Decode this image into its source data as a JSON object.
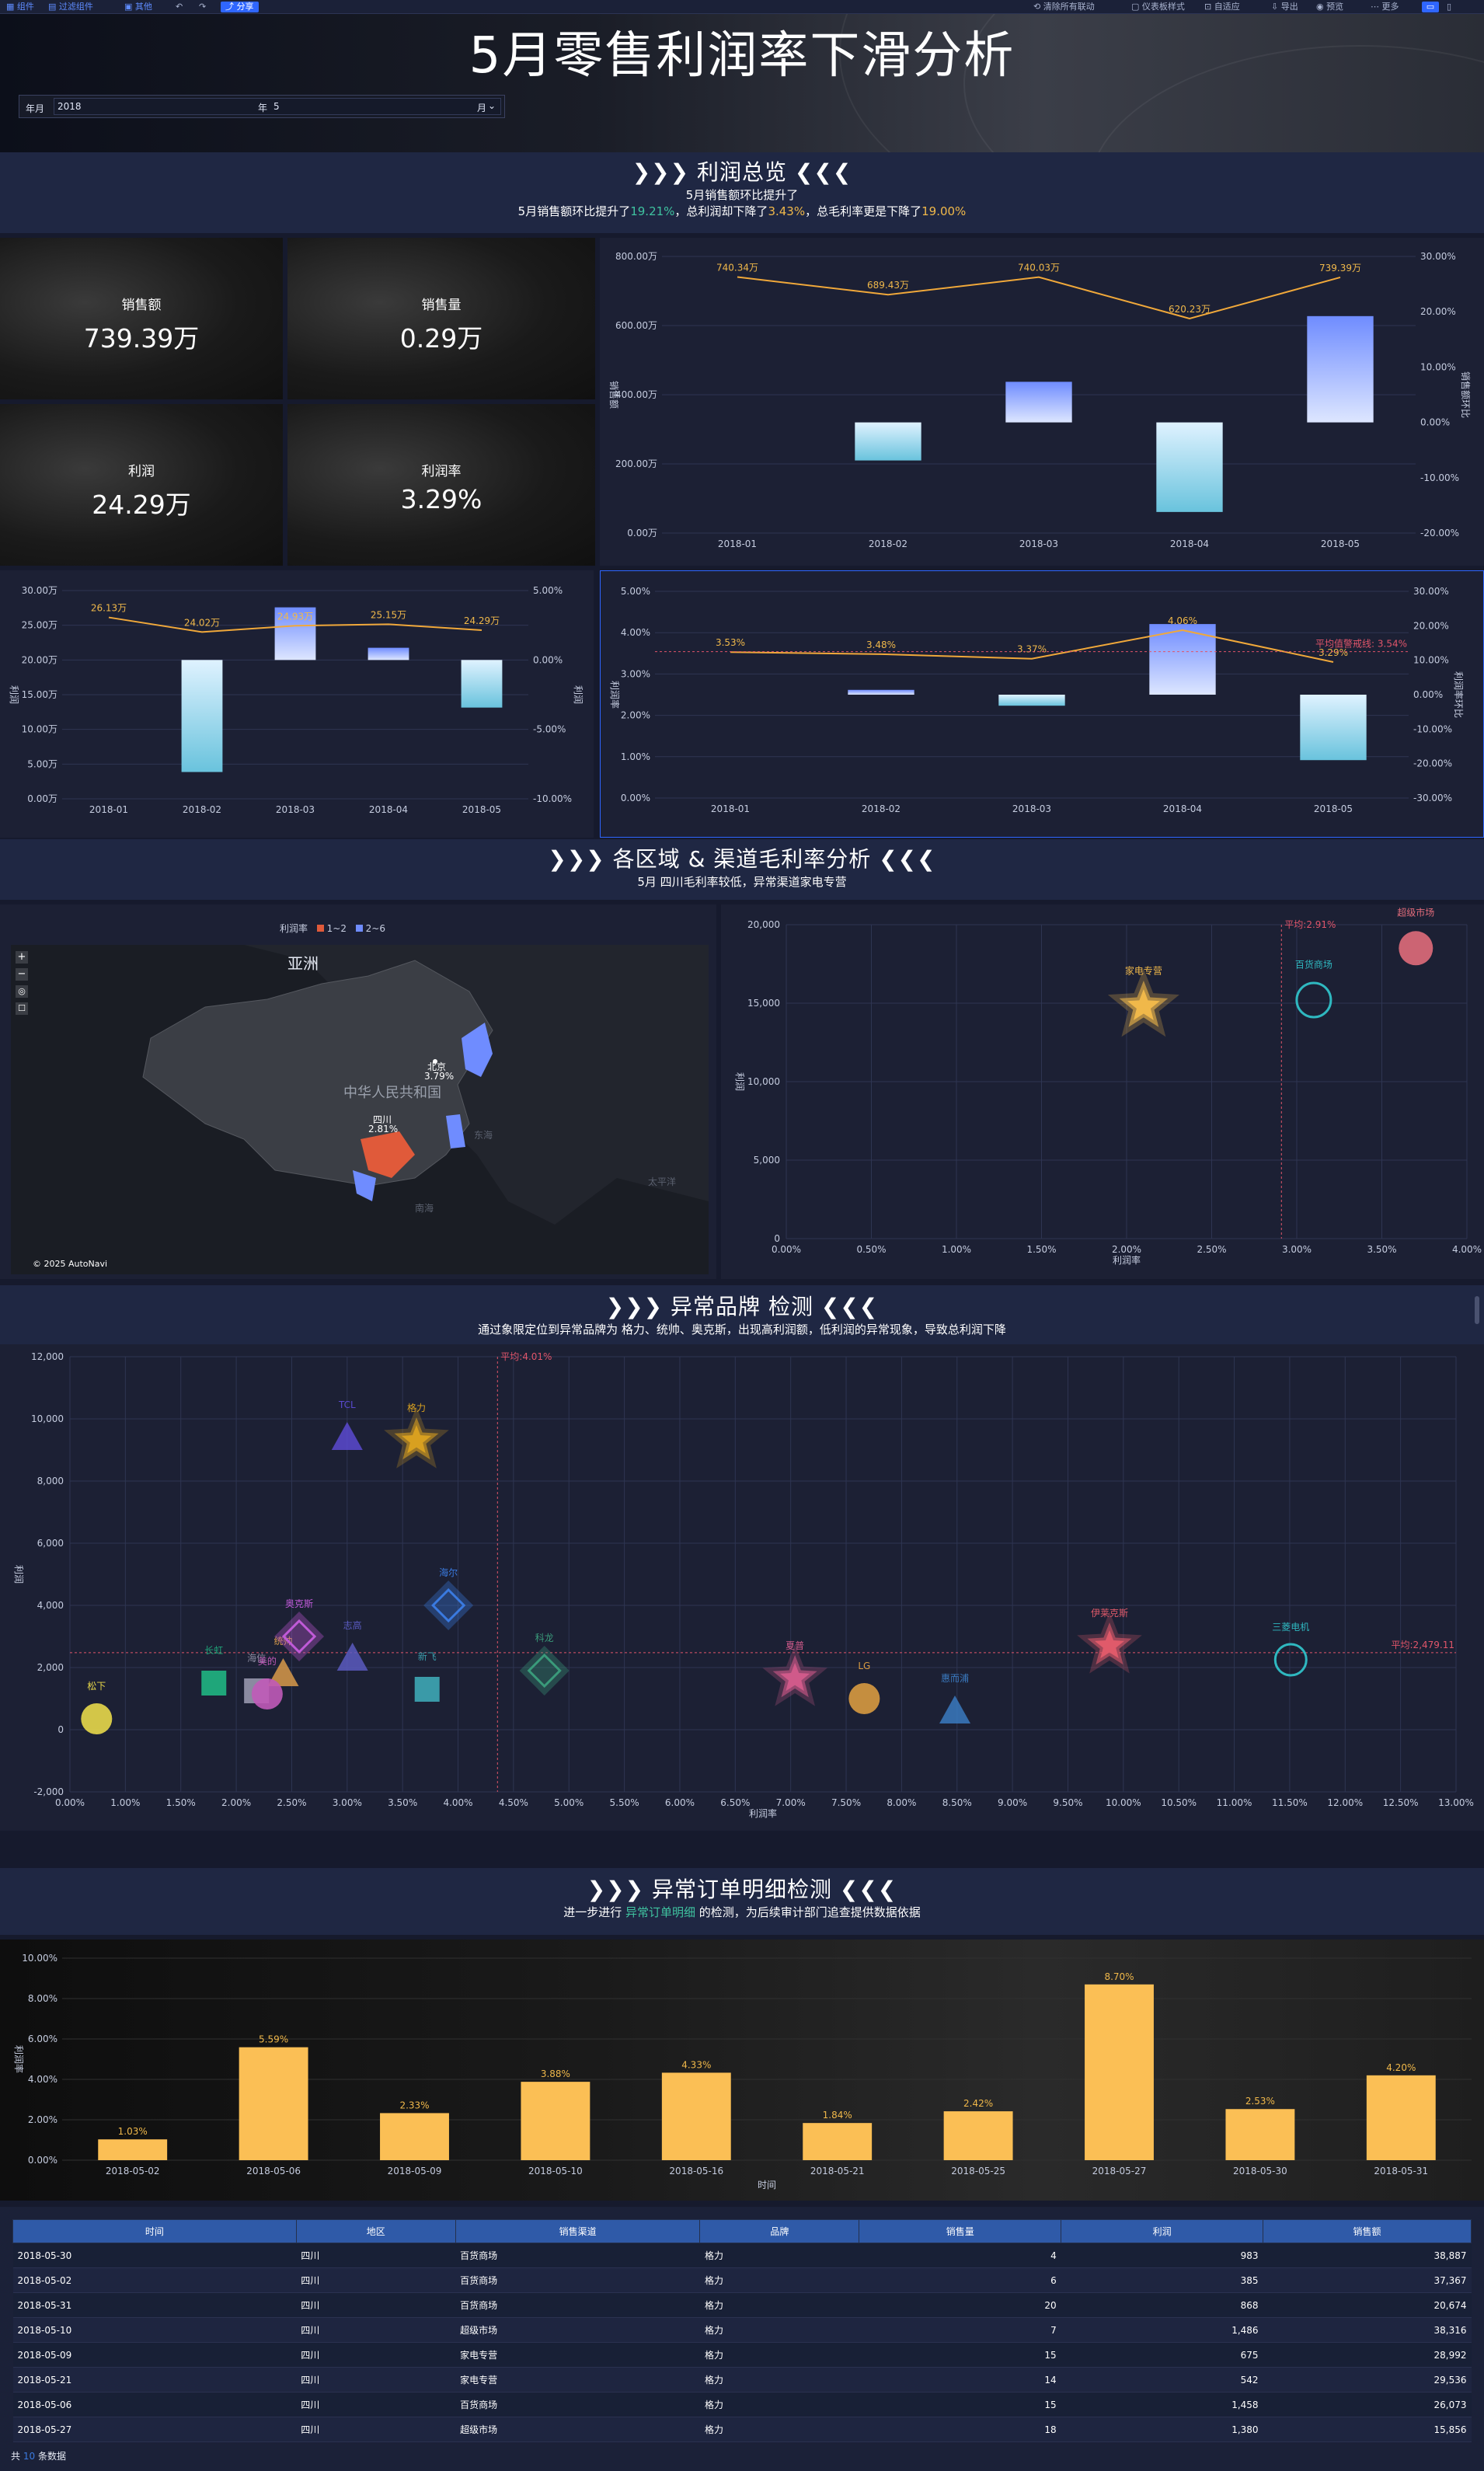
{
  "toolbar": {
    "left": [
      "组件",
      "过滤组件",
      "其他"
    ],
    "share": "分享",
    "right": [
      "清除所有联动",
      "仪表板样式",
      "自适应",
      "导出",
      "预览",
      "更多"
    ]
  },
  "header": {
    "title": "5月零售利润率下滑分析",
    "filter_label": "年月",
    "year_value": "2018",
    "year_unit": "年",
    "month_value": "5",
    "month_unit": "月"
  },
  "section1": {
    "title": "利润总览",
    "line1": "5月销售额环比提升了",
    "line2_a": "5月销售额环比提升了",
    "line2_b": "19.21%",
    "line2_c": "，总利润却下降了",
    "line2_d": "3.43%",
    "line2_e": "，总毛利率更是下降了",
    "line2_f": "19.00%"
  },
  "kpis": [
    {
      "label": "销售额",
      "value": "739.39万"
    },
    {
      "label": "销售量",
      "value": "0.29万"
    },
    {
      "label": "利润",
      "value": "24.29万"
    },
    {
      "label": "利润率",
      "value": "3.29%"
    }
  ],
  "section2": {
    "title": "各区域 & 渠道毛利率分析",
    "subtitle": "5月 四川毛利率较低，异常渠道家电专营"
  },
  "map": {
    "legend_title": "利润率",
    "legend_items": [
      {
        "label": "1~2",
        "color": "#e05a3a"
      },
      {
        "label": "2~6",
        "color": "#6f8cff"
      }
    ],
    "labels": {
      "asia": "亚洲",
      "china": "中华人民共和国",
      "beijing": "北京",
      "beijing_val": "3.79%",
      "sichuan": "四川",
      "sichuan_val": "2.81%",
      "pacific": "太平洋",
      "east_sea": "东海",
      "south_sea": "南海",
      "copyright": "© 2025 AutoNavi"
    },
    "controls": [
      "+",
      "−",
      "◎",
      "☐"
    ]
  },
  "section3": {
    "title": "异常品牌 检测",
    "subtitle": "通过象限定位到异常品牌为 格力、统帅、奥克斯，出现高利润额，低利润的异常现象，导致总利润下降"
  },
  "section4": {
    "title": "异常订单明细检测",
    "sub_a": "进一步进行",
    "sub_b": "异常订单明细",
    "sub_c": "的检测，为后续审计部门追查提供数据依据"
  },
  "table": {
    "columns": [
      "时间",
      "地区",
      "销售渠道",
      "品牌",
      "销售量",
      "利润",
      "销售额"
    ],
    "rows": [
      [
        "2018-05-30",
        "四川",
        "百货商场",
        "格力",
        "4",
        "983",
        "38,887"
      ],
      [
        "2018-05-02",
        "四川",
        "百货商场",
        "格力",
        "6",
        "385",
        "37,367"
      ],
      [
        "2018-05-31",
        "四川",
        "百货商场",
        "格力",
        "20",
        "868",
        "20,674"
      ],
      [
        "2018-05-10",
        "四川",
        "超级市场",
        "格力",
        "7",
        "1,486",
        "38,316"
      ],
      [
        "2018-05-09",
        "四川",
        "家电专营",
        "格力",
        "15",
        "675",
        "28,992"
      ],
      [
        "2018-05-21",
        "四川",
        "家电专营",
        "格力",
        "14",
        "542",
        "29,536"
      ],
      [
        "2018-05-06",
        "四川",
        "百货商场",
        "格力",
        "15",
        "1,458",
        "26,073"
      ],
      [
        "2018-05-27",
        "四川",
        "超级市场",
        "格力",
        "18",
        "1,380",
        "15,856"
      ]
    ],
    "footer_a": "共",
    "footer_b": "10",
    "footer_c": "条数据"
  },
  "chart_data": [
    {
      "type": "bar",
      "subtype": "bar+line",
      "categories": [
        "2018-01",
        "2018-02",
        "2018-03",
        "2018-04",
        "2018-05"
      ],
      "line": {
        "name": "销售额",
        "values": [
          740.34,
          689.43,
          740.03,
          620.23,
          739.39
        ],
        "labels": [
          "740.34万",
          "689.43万",
          "740.03万",
          "620.23万",
          "739.39万"
        ]
      },
      "bars": {
        "name": "销售额环比",
        "values": [
          0,
          -6.88,
          7.34,
          -16.19,
          19.21
        ]
      },
      "ylabel": "销售额",
      "y2label": "销售额环比",
      "yticks": [
        "0.00万",
        "200.00万",
        "400.00万",
        "600.00万",
        "800.00万"
      ],
      "y2ticks": [
        "-20.00%",
        "-10.00%",
        "0.00%",
        "10.00%",
        "20.00%",
        "30.00%"
      ],
      "ylim": [
        0,
        800
      ],
      "y2lim": [
        -20,
        30
      ]
    },
    {
      "type": "bar",
      "subtype": "bar+line",
      "categories": [
        "2018-01",
        "2018-02",
        "2018-03",
        "2018-04",
        "2018-05"
      ],
      "line": {
        "name": "利润",
        "values": [
          26.13,
          24.02,
          24.93,
          25.15,
          24.29
        ],
        "labels": [
          "26.13万",
          "24.02万",
          "24.93万",
          "25.15万",
          "24.29万"
        ]
      },
      "bars": {
        "values": [
          0,
          -8.07,
          3.79,
          0.88,
          -3.43
        ]
      },
      "ylabel": "利润",
      "y2label": "利润",
      "yticks": [
        "0.00万",
        "5.00万",
        "10.00万",
        "15.00万",
        "20.00万",
        "25.00万",
        "30.00万"
      ],
      "y2ticks": [
        "-10.00%",
        "-5.00%",
        "0.00%",
        "5.00%"
      ],
      "ylim": [
        0,
        30
      ],
      "y2lim": [
        -10,
        5
      ]
    },
    {
      "type": "bar",
      "subtype": "bar+line",
      "categories": [
        "2018-01",
        "2018-02",
        "2018-03",
        "2018-04",
        "2018-05"
      ],
      "line": {
        "name": "利润率",
        "values": [
          3.53,
          3.48,
          3.37,
          4.06,
          3.29
        ],
        "labels": [
          "3.53%",
          "3.48%",
          "3.37%",
          "4.06%",
          "3.29%"
        ]
      },
      "bars": {
        "values": [
          0,
          1.4,
          -3.2,
          20.5,
          -19.0
        ]
      },
      "reference": {
        "label": "平均值警戒线: 3.54%",
        "value": 3.54
      },
      "ylabel": "利润率",
      "y2label": "利润率环比",
      "yticks": [
        "0.00%",
        "1.00%",
        "2.00%",
        "3.00%",
        "4.00%",
        "5.00%"
      ],
      "y2ticks": [
        "-30.00%",
        "-20.00%",
        "-10.00%",
        "0.00%",
        "10.00%",
        "20.00%",
        "30.00%"
      ],
      "ylim": [
        0,
        5
      ],
      "y2lim": [
        -30,
        30
      ]
    },
    {
      "type": "scatter",
      "points": [
        {
          "name": "家电专营",
          "x": 2.1,
          "y": 14800,
          "color": "#f0b84a",
          "shape": "star"
        },
        {
          "name": "百货商场",
          "x": 3.1,
          "y": 15200,
          "color": "#2fb8c0",
          "shape": "circle-ring"
        },
        {
          "name": "超级市场",
          "x": 3.7,
          "y": 18500,
          "color": "#e06b7a",
          "shape": "circle"
        }
      ],
      "reference_x": {
        "label": "平均:2.91%",
        "value": 2.91
      },
      "ylabel": "利润",
      "xlabel": "利润率",
      "xticks": [
        "0.00%",
        "0.50%",
        "1.00%",
        "1.50%",
        "2.00%",
        "2.50%",
        "3.00%",
        "3.50%",
        "4.00%"
      ],
      "yticks": [
        "0",
        "5,000",
        "10,000",
        "15,000",
        "20,000"
      ],
      "xlim": [
        0,
        4
      ],
      "ylim": [
        0,
        20000
      ]
    },
    {
      "type": "scatter",
      "points": [
        {
          "name": "松下",
          "x": 0.25,
          "y": 350,
          "color": "#e8d84a",
          "shape": "circle"
        },
        {
          "name": "长虹",
          "x": 1.35,
          "y": 1500,
          "color": "#1fa67a",
          "shape": "square"
        },
        {
          "name": "海信",
          "x": 1.75,
          "y": 1250,
          "color": "#8a8aa0",
          "shape": "square"
        },
        {
          "name": "统帅",
          "x": 2.0,
          "y": 1800,
          "color": "#d89a4a",
          "shape": "triangle"
        },
        {
          "name": "美的",
          "x": 1.85,
          "y": 1150,
          "color": "#c05ab8",
          "shape": "circle"
        },
        {
          "name": "奥克斯",
          "x": 2.15,
          "y": 3000,
          "color": "#c05ad8",
          "shape": "diamond"
        },
        {
          "name": "志高",
          "x": 2.65,
          "y": 2300,
          "color": "#5a5ac0",
          "shape": "triangle"
        },
        {
          "name": "新飞",
          "x": 3.35,
          "y": 1300,
          "color": "#3a9aa8",
          "shape": "square"
        },
        {
          "name": "海尔",
          "x": 3.55,
          "y": 4000,
          "color": "#3a7ae0",
          "shape": "diamond"
        },
        {
          "name": "格力",
          "x": 3.25,
          "y": 9300,
          "color": "#d8a020",
          "shape": "star"
        },
        {
          "name": "TCL",
          "x": 2.6,
          "y": 9400,
          "color": "#5a4ad0",
          "shape": "triangle"
        },
        {
          "name": "科龙",
          "x": 4.45,
          "y": 1900,
          "color": "#3a9a7a",
          "shape": "diamond"
        },
        {
          "name": "夏普",
          "x": 6.8,
          "y": 1650,
          "color": "#d05a8a",
          "shape": "star"
        },
        {
          "name": "LG",
          "x": 7.45,
          "y": 1000,
          "color": "#d89a40",
          "shape": "circle"
        },
        {
          "name": "惠而浦",
          "x": 8.3,
          "y": 600,
          "color": "#3a7ac0",
          "shape": "triangle"
        },
        {
          "name": "伊莱克斯",
          "x": 9.75,
          "y": 2700,
          "color": "#e05a6a",
          "shape": "star"
        },
        {
          "name": "三菱电机",
          "x": 11.45,
          "y": 2250,
          "color": "#2fb8c0",
          "shape": "circle-ring"
        }
      ],
      "reference_x": {
        "label": "平均:4.01%",
        "value": 4.01
      },
      "reference_y": {
        "label": "平均:2,479.11",
        "value": 2479.11
      },
      "ylabel": "利润",
      "xlabel": "利润率",
      "xticks": [
        "0.00%",
        "1.00%",
        "1.50%",
        "2.00%",
        "2.50%",
        "3.00%",
        "3.50%",
        "4.00%",
        "4.50%",
        "5.00%",
        "5.50%",
        "6.00%",
        "6.50%",
        "7.00%",
        "7.50%",
        "8.00%",
        "8.50%",
        "9.00%",
        "9.50%",
        "10.00%",
        "10.50%",
        "11.00%",
        "11.50%",
        "12.00%",
        "12.50%",
        "13.00%"
      ],
      "yticks": [
        "-2,000",
        "0",
        "2,000",
        "4,000",
        "6,000",
        "8,000",
        "10,000",
        "12,000"
      ],
      "xlim": [
        0,
        13
      ],
      "ylim": [
        -2000,
        12000
      ]
    },
    {
      "type": "bar",
      "categories": [
        "2018-05-02",
        "2018-05-06",
        "2018-05-09",
        "2018-05-10",
        "2018-05-16",
        "2018-05-21",
        "2018-05-25",
        "2018-05-27",
        "2018-05-30",
        "2018-05-31"
      ],
      "values": [
        1.03,
        5.59,
        2.33,
        3.88,
        4.33,
        1.84,
        2.42,
        8.7,
        2.53,
        4.2
      ],
      "labels": [
        "1.03%",
        "5.59%",
        "2.33%",
        "3.88%",
        "4.33%",
        "1.84%",
        "2.42%",
        "8.70%",
        "2.53%",
        "4.20%"
      ],
      "color": "#fbbf55",
      "ylabel": "利润率",
      "xlabel": "时间",
      "yticks": [
        "0.00%",
        "2.00%",
        "4.00%",
        "6.00%",
        "8.00%",
        "10.00%"
      ],
      "ylim": [
        0,
        10
      ]
    }
  ]
}
